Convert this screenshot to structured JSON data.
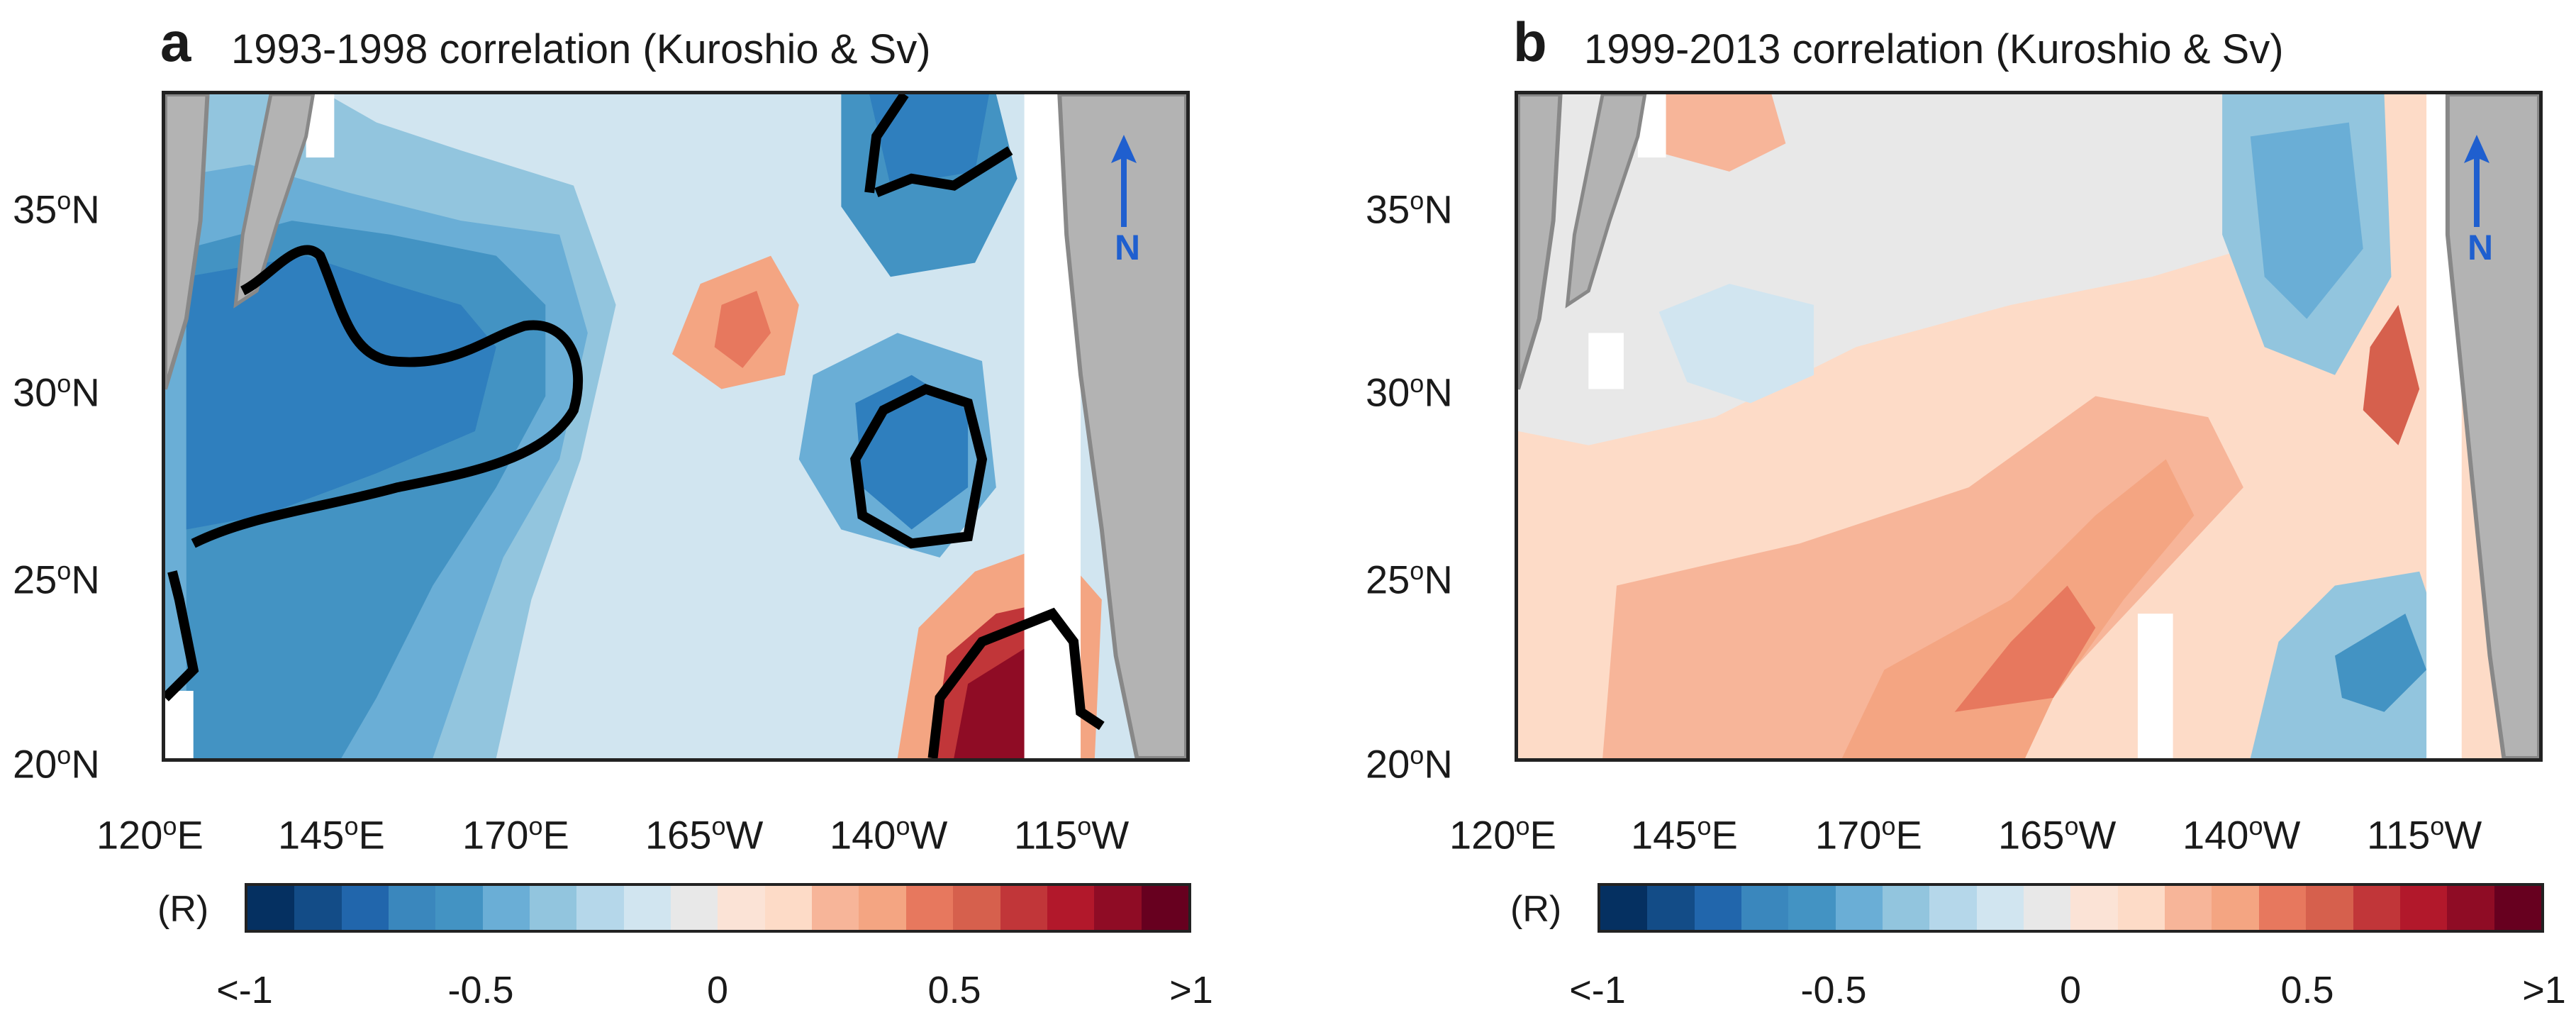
{
  "panels": [
    {
      "letter": "a",
      "title": "1993-1998 correlation (Kuroshio & Sv)",
      "field": "a"
    },
    {
      "letter": "b",
      "title": "1999-2013 correlation (Kuroshio & Sv)",
      "field": "b"
    }
  ],
  "axes": {
    "lat_labels": [
      "35",
      "30",
      "25",
      "20"
    ],
    "lat_suffix": "N",
    "lat_values": [
      35,
      30,
      25,
      20
    ],
    "lon_labels": [
      "120",
      "145",
      "170",
      "165",
      "140",
      "115"
    ],
    "lon_suffix": [
      "E",
      "E",
      "E",
      "W",
      "W",
      "W"
    ],
    "lon_values": [
      120,
      145,
      170,
      195,
      220,
      245
    ],
    "lon_range": [
      120,
      260
    ],
    "lat_range": [
      20,
      38
    ],
    "degree_symbol": "o"
  },
  "north_arrow": {
    "label": "N"
  },
  "colorbar": {
    "label": "(R)",
    "tick_labels": [
      "<-1",
      "-0.5",
      "0",
      "0.5",
      ">1"
    ],
    "tick_values": [
      -1,
      -0.5,
      0,
      0.5,
      1
    ],
    "colors": [
      "#053061",
      "#134c87",
      "#2166ac",
      "#3a87bd",
      "#4393c3",
      "#6aaed6",
      "#92c5de",
      "#b5d7ea",
      "#d1e5f0",
      "#e8e8e8",
      "#fbe3d6",
      "#fddbc7",
      "#f7b599",
      "#f4a582",
      "#e7785e",
      "#d6604d",
      "#c13639",
      "#b2182b",
      "#8f0c25",
      "#67001f"
    ],
    "min": -1,
    "max": 1
  },
  "colors": {
    "land": "#b3b3b3",
    "coast": "#888888",
    "contour": "#000000",
    "north_arrow": "#1f5fcf"
  }
}
